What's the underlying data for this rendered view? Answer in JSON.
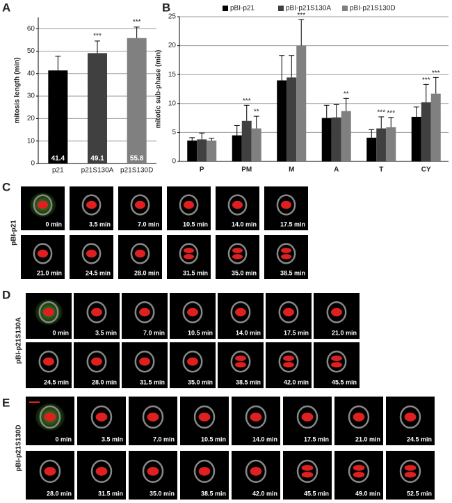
{
  "chart_data": [
    {
      "type": "bar",
      "panel_label": "A",
      "y_label": "mitosis length (min)",
      "categories": [
        "p21",
        "p21S130A",
        "p21S130D"
      ],
      "values": [
        41.4,
        49.1,
        55.8
      ],
      "errors": [
        6.3,
        5.4,
        4.9
      ],
      "colors": [
        "#000000",
        "#404040",
        "#808080"
      ],
      "annotations": [
        null,
        "***",
        "***"
      ],
      "ylim": [
        0,
        65
      ],
      "yticks": [
        0,
        10,
        20,
        30,
        40,
        50,
        60
      ],
      "grid": true
    },
    {
      "type": "grouped-bar",
      "panel_label": "B",
      "y_label": "mitotic sub-phase (min)",
      "categories": [
        "P",
        "PM",
        "M",
        "A",
        "T",
        "CY"
      ],
      "series": [
        {
          "name": "pBI-p21",
          "color": "#000000",
          "values": [
            3.6,
            4.5,
            14.0,
            7.5,
            4.1,
            7.7
          ],
          "errors": [
            0.5,
            1.7,
            4.3,
            2.2,
            1.4,
            1.7
          ],
          "annotations": [
            null,
            null,
            null,
            null,
            null,
            null
          ]
        },
        {
          "name": "pBI-p21S130A",
          "color": "#404040",
          "values": [
            3.8,
            7.0,
            14.5,
            7.6,
            5.7,
            10.2
          ],
          "errors": [
            1.1,
            2.7,
            3.8,
            2.2,
            2.0,
            3.1
          ],
          "annotations": [
            null,
            "***",
            null,
            null,
            "***",
            "***"
          ]
        },
        {
          "name": "pBI-p21S130D",
          "color": "#808080",
          "values": [
            3.6,
            5.7,
            20.0,
            8.7,
            5.9,
            11.7
          ],
          "errors": [
            0.4,
            2.1,
            4.5,
            2.2,
            1.7,
            2.8
          ],
          "annotations": [
            null,
            "**",
            "***",
            "**",
            "***",
            "***"
          ]
        }
      ],
      "ylim": [
        0,
        25
      ],
      "yticks": [
        0,
        5,
        10,
        15,
        20,
        25
      ],
      "grid": true,
      "legend": "top"
    }
  ],
  "panels": [
    {
      "label": "C",
      "name": "pBI-p21",
      "rows": [
        [
          "0 min",
          "3.5 min",
          "7.0 min",
          "10.5 min",
          "14.0 min",
          "17.5 min"
        ],
        [
          "21.0 min",
          "24.5 min",
          "28.0 min",
          "31.5 min",
          "35.0 min",
          "38.5 min"
        ]
      ]
    },
    {
      "label": "D",
      "name": "pBI-p21S130A",
      "rows": [
        [
          "0 min",
          "3.5 min",
          "7.0 min",
          "10.5 min",
          "14.0 min",
          "17.5 min",
          "21.0 min"
        ],
        [
          "24.5 min",
          "28.0 min",
          "31.5 min",
          "35.0 min",
          "38.5 min",
          "42.0 min",
          "45.5 min"
        ]
      ]
    },
    {
      "label": "E",
      "name": "pBI-p21S130D",
      "rows": [
        [
          "0 min",
          "3.5 min",
          "7.0 min",
          "10.5 min",
          "14.0 min",
          "17.5 min",
          "21.0 min",
          "24.5 min"
        ],
        [
          "28.0 min",
          "31.5 min",
          "35.0 min",
          "38.5 min",
          "42.0 min",
          "45.5 min",
          "49.0 min",
          "52.5 min"
        ]
      ]
    }
  ]
}
